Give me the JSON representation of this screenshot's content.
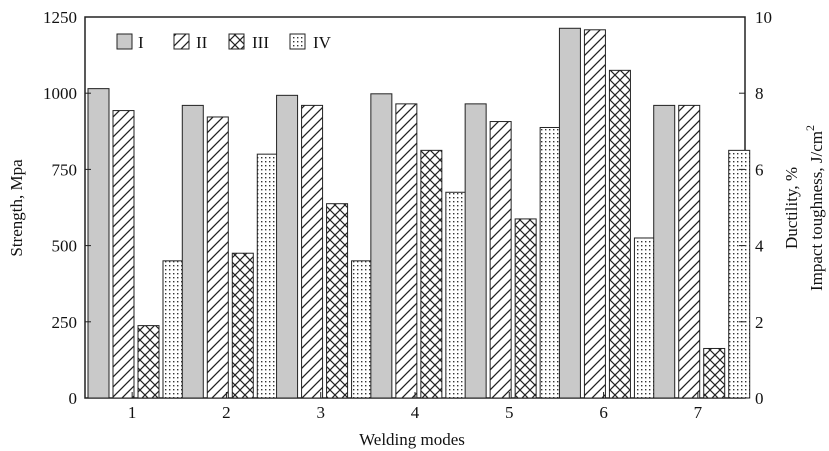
{
  "chart_data": {
    "type": "bar",
    "xlabel": "Welding modes",
    "ylabel_left": "Strength, Mpa",
    "ylabel_right_1": "Ductility, %",
    "ylabel_right_2": "Impact toughness, J/cm",
    "ylabel_right_2_superscript": "2",
    "categories": [
      "1",
      "2",
      "3",
      "4",
      "5",
      "6",
      "7"
    ],
    "left_axis": {
      "ylim": [
        0,
        1250
      ],
      "ticks": [
        "0",
        "250",
        "500",
        "750",
        "1000",
        "1250"
      ]
    },
    "right_axis": {
      "ylim": [
        0,
        10
      ],
      "ticks": [
        "0",
        "2",
        "4",
        "6",
        "8",
        "10"
      ]
    },
    "legend_placement": "top-left",
    "series": [
      {
        "name": "I",
        "axis": "left",
        "pattern": "solid-gray",
        "values": [
          1015,
          960,
          993,
          998,
          965,
          1213,
          960
        ]
      },
      {
        "name": "II",
        "axis": "left",
        "pattern": "diagonal",
        "values": [
          943,
          922,
          960,
          965,
          907,
          1208,
          960
        ]
      },
      {
        "name": "III",
        "axis": "right",
        "pattern": "crosshatch",
        "values": [
          1.9,
          3.8,
          5.1,
          6.5,
          4.7,
          8.6,
          1.3
        ]
      },
      {
        "name": "IV",
        "axis": "right",
        "pattern": "dotted",
        "values": [
          3.6,
          6.4,
          3.6,
          5.4,
          7.1,
          4.2,
          6.5
        ]
      }
    ],
    "colors": {
      "solid_fill": "#c9c9c9",
      "stroke": "#222222",
      "background": "#ffffff"
    }
  }
}
